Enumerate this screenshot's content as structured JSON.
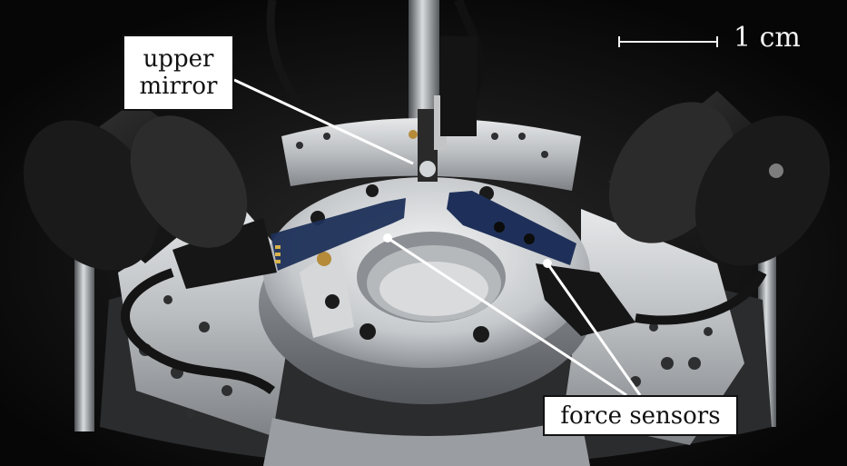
{
  "annotations": {
    "upper_mirror": [
      "upper",
      "mirror"
    ],
    "force_sensors": "force sensors",
    "scale_bar": "1 cm"
  },
  "colors": {
    "background": "#0b0b0b",
    "aluminum": "#c9cbcc",
    "pcb": "#1d2f55",
    "label_box": "#ffffff",
    "pointer_line": "#ffffff"
  }
}
